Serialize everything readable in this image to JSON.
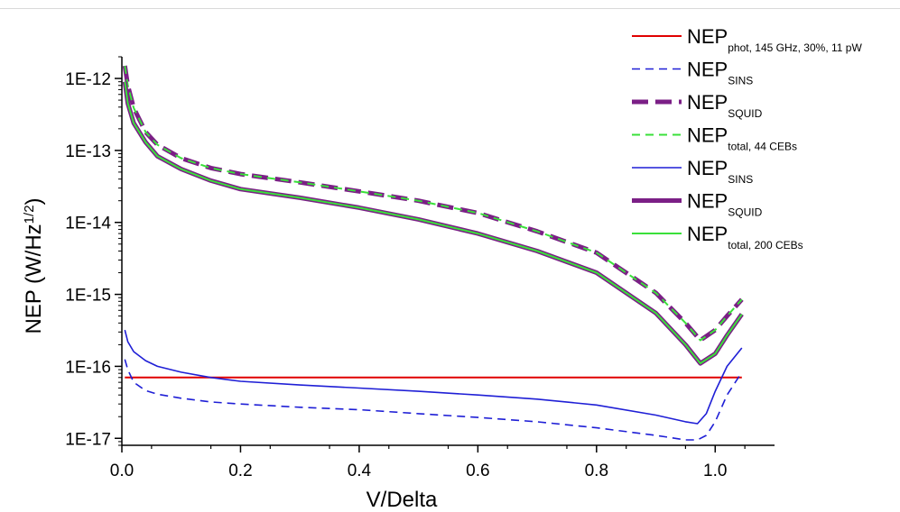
{
  "chart_data": {
    "type": "line",
    "title": "",
    "xlabel": "V/Delta",
    "ylabel": {
      "base": "NEP (W/Hz",
      "sup": "1/2",
      "tail": ")"
    },
    "x_range": [
      0.0,
      1.1
    ],
    "y_scale": "log",
    "y_range": [
      8e-18,
      2e-12
    ],
    "x_ticks": [
      {
        "v": 0.0,
        "label": "0.0"
      },
      {
        "v": 0.2,
        "label": "0.2"
      },
      {
        "v": 0.4,
        "label": "0.4"
      },
      {
        "v": 0.6,
        "label": "0.6"
      },
      {
        "v": 0.8,
        "label": "0.8"
      },
      {
        "v": 1.0,
        "label": "1.0"
      }
    ],
    "y_ticks": [
      {
        "v": 1e-17,
        "label": "1E-17"
      },
      {
        "v": 1e-16,
        "label": "1E-16"
      },
      {
        "v": 1e-15,
        "label": "1E-15"
      },
      {
        "v": 1e-14,
        "label": "1E-14"
      },
      {
        "v": 1e-13,
        "label": "1E-13"
      },
      {
        "v": 1e-12,
        "label": "1E-12"
      }
    ],
    "legend_position": "top-right",
    "series": [
      {
        "name": "NEP",
        "sub": "phot, 145 GHz, 30%, 11 pW",
        "color": "#e00000",
        "dash": "solid",
        "width": 2,
        "x": [
          0.005,
          1.045
        ],
        "y": [
          7e-17,
          7e-17
        ]
      },
      {
        "name": "NEP",
        "sub": "SINS",
        "color": "#1f1fd6",
        "dash": "dashed",
        "width": 1.6,
        "x": [
          0.005,
          0.01,
          0.02,
          0.04,
          0.06,
          0.1,
          0.15,
          0.2,
          0.3,
          0.4,
          0.5,
          0.6,
          0.7,
          0.8,
          0.9,
          0.95,
          0.97,
          0.985,
          1.0,
          1.02,
          1.045
        ],
        "y": [
          1.25e-16,
          9e-17,
          6e-17,
          4.6e-17,
          4.1e-17,
          3.6e-17,
          3.2e-17,
          3e-17,
          2.7e-17,
          2.5e-17,
          2.2e-17,
          1.95e-17,
          1.7e-17,
          1.4e-17,
          1.1e-17,
          9.5e-18,
          9.5e-18,
          1.1e-17,
          1.7e-17,
          4e-17,
          8.3e-17
        ]
      },
      {
        "name": "NEP",
        "sub": "SQUID",
        "color": "#7b1f86",
        "dash": "longdash",
        "width": 5,
        "x": [
          0.005,
          0.01,
          0.02,
          0.04,
          0.06,
          0.1,
          0.15,
          0.2,
          0.3,
          0.4,
          0.5,
          0.6,
          0.7,
          0.8,
          0.9,
          0.95,
          0.975,
          1.0,
          1.02,
          1.045
        ],
        "y": [
          1.5e-12,
          8e-13,
          3.9e-13,
          1.8e-13,
          1.2e-13,
          7.8e-14,
          5.7e-14,
          4.7e-14,
          3.6e-14,
          2.7e-14,
          2e-14,
          1.35e-14,
          7.5e-15,
          3.8e-15,
          1.05e-15,
          4e-16,
          2.3e-16,
          3.2e-16,
          5e-16,
          8.5e-16
        ]
      },
      {
        "name": "NEP",
        "sub": "total, 44 CEBs",
        "color": "#3ae03a",
        "dash": "dashed",
        "width": 2,
        "x": [
          0.005,
          0.01,
          0.02,
          0.04,
          0.06,
          0.1,
          0.15,
          0.2,
          0.3,
          0.4,
          0.5,
          0.6,
          0.7,
          0.8,
          0.9,
          0.95,
          0.975,
          1.0,
          1.02,
          1.045
        ],
        "y": [
          1.5e-12,
          8e-13,
          3.9e-13,
          1.8e-13,
          1.2e-13,
          7.8e-14,
          5.7e-14,
          4.7e-14,
          3.6e-14,
          2.7e-14,
          2e-14,
          1.35e-14,
          7.5e-15,
          3.8e-15,
          1.05e-15,
          4e-16,
          2.3e-16,
          3.2e-16,
          5e-16,
          8.5e-16
        ]
      },
      {
        "name": "NEP",
        "sub": "SINS",
        "color": "#1f1fd6",
        "dash": "solid",
        "width": 1.6,
        "x": [
          0.005,
          0.01,
          0.02,
          0.04,
          0.06,
          0.1,
          0.15,
          0.2,
          0.3,
          0.4,
          0.5,
          0.6,
          0.7,
          0.8,
          0.9,
          0.95,
          0.97,
          0.985,
          1.0,
          1.02,
          1.045
        ],
        "y": [
          3.2e-16,
          2.2e-16,
          1.6e-16,
          1.2e-16,
          1e-16,
          8.3e-17,
          7e-17,
          6.2e-17,
          5.5e-17,
          5e-17,
          4.5e-17,
          4e-17,
          3.5e-17,
          2.9e-17,
          2.1e-17,
          1.7e-17,
          1.6e-17,
          2.2e-17,
          4.5e-17,
          1e-16,
          1.8e-16
        ]
      },
      {
        "name": "NEP",
        "sub": "SQUID",
        "color": "#7b1f86",
        "dash": "solid",
        "width": 5,
        "x": [
          0.005,
          0.01,
          0.02,
          0.04,
          0.06,
          0.1,
          0.15,
          0.2,
          0.3,
          0.4,
          0.5,
          0.6,
          0.7,
          0.8,
          0.9,
          0.95,
          0.975,
          1.0,
          1.02,
          1.045
        ],
        "y": [
          9e-13,
          4.5e-13,
          2.4e-13,
          1.3e-13,
          8.3e-14,
          5.5e-14,
          3.8e-14,
          2.9e-14,
          2.2e-14,
          1.6e-14,
          1.1e-14,
          7e-15,
          4e-15,
          2e-15,
          5.5e-16,
          2e-16,
          1.1e-16,
          1.5e-16,
          2.7e-16,
          5.3e-16
        ]
      },
      {
        "name": "NEP",
        "sub": "total, 200 CEBs",
        "color": "#3ae03a",
        "dash": "solid",
        "width": 2,
        "x": [
          0.005,
          0.01,
          0.02,
          0.04,
          0.06,
          0.1,
          0.15,
          0.2,
          0.3,
          0.4,
          0.5,
          0.6,
          0.7,
          0.8,
          0.9,
          0.95,
          0.975,
          1.0,
          1.02,
          1.045
        ],
        "y": [
          9e-13,
          4.5e-13,
          2.4e-13,
          1.3e-13,
          8.3e-14,
          5.5e-14,
          3.8e-14,
          2.9e-14,
          2.2e-14,
          1.6e-14,
          1.1e-14,
          7e-15,
          4e-15,
          2e-15,
          5.5e-16,
          2e-16,
          1.1e-16,
          1.5e-16,
          2.7e-16,
          5.3e-16
        ]
      }
    ]
  }
}
